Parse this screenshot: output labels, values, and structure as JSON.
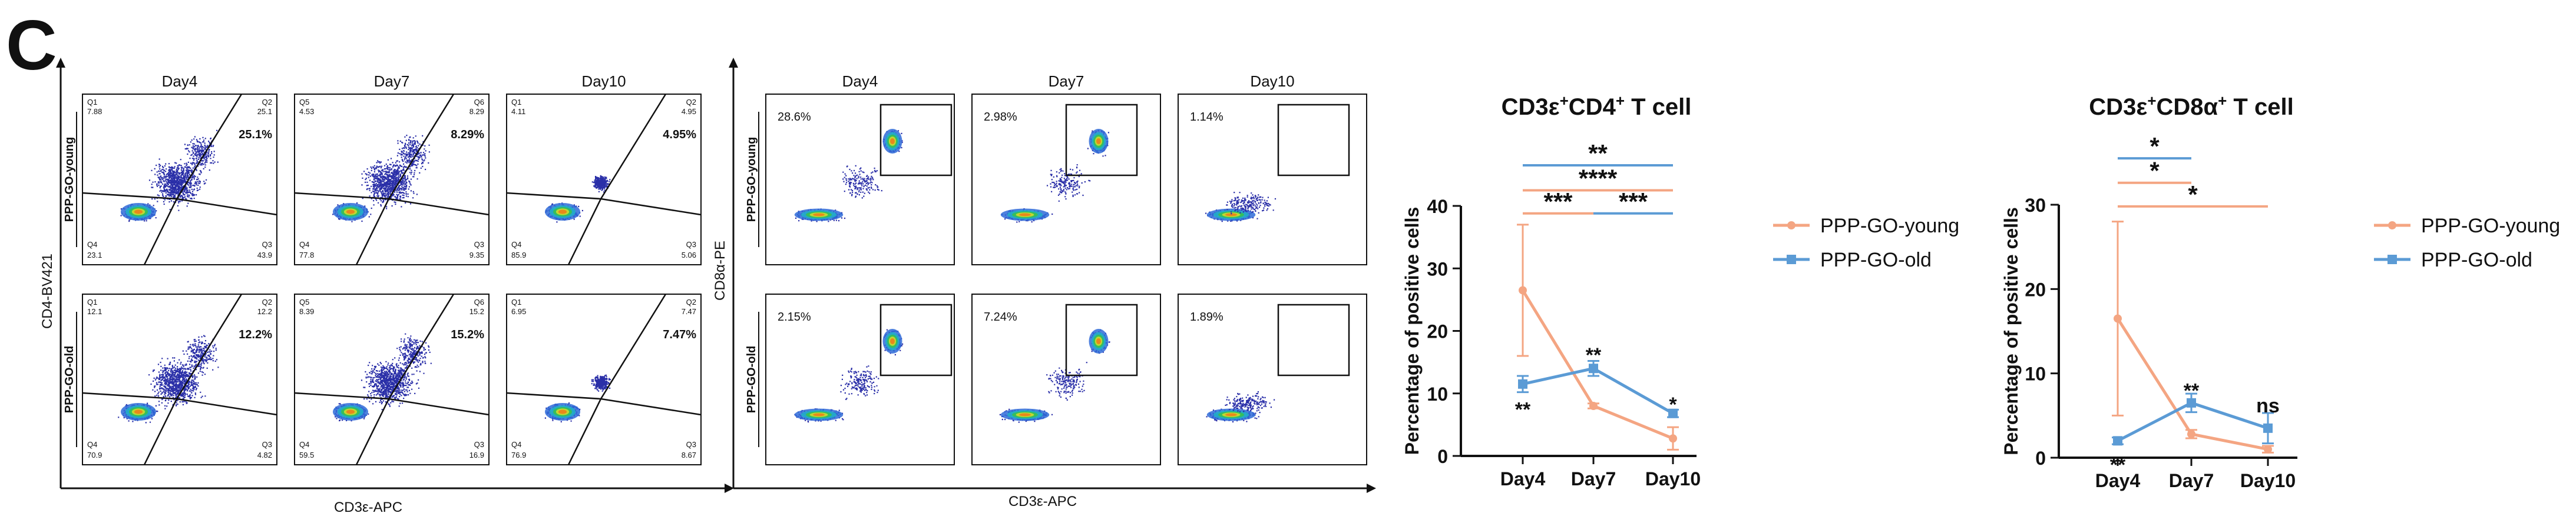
{
  "panel_letter": "C",
  "flow_cd4": {
    "days": [
      "Day4",
      "Day7",
      "Day10"
    ],
    "row_labels": [
      "PPP-GO-young",
      "PPP-GO-old"
    ],
    "y_axis_label": "CD4-BV421",
    "x_axis_label": "CD3ε-APC",
    "gates": [
      [
        {
          "q1_label": "Q1",
          "q1": "7.88",
          "q2_label": "Q2",
          "q2": "25.1",
          "q3_label": "Q3",
          "q3": "43.9",
          "q4_label": "Q4",
          "q4": "23.1",
          "highlight": "25.1%"
        },
        {
          "q1_label": "Q5",
          "q1": "4.53",
          "q2_label": "Q6",
          "q2": "8.29",
          "q3_label": "Q3",
          "q3": "9.35",
          "q4_label": "Q4",
          "q4": "77.8",
          "highlight": "8.29%"
        },
        {
          "q1_label": "Q1",
          "q1": "4.11",
          "q2_label": "Q2",
          "q2": "4.95",
          "q3_label": "Q3",
          "q3": "5.06",
          "q4_label": "Q4",
          "q4": "85.9",
          "highlight": "4.95%"
        }
      ],
      [
        {
          "q1_label": "Q1",
          "q1": "12.1",
          "q2_label": "Q2",
          "q2": "12.2",
          "q3_label": "Q3",
          "q3": "4.82",
          "q4_label": "Q4",
          "q4": "70.9",
          "highlight": "12.2%"
        },
        {
          "q1_label": "Q5",
          "q1": "8.39",
          "q2_label": "Q6",
          "q2": "15.2",
          "q3_label": "Q3",
          "q3": "16.9",
          "q4_label": "Q4",
          "q4": "59.5",
          "highlight": "15.2%"
        },
        {
          "q1_label": "Q1",
          "q1": "6.95",
          "q2_label": "Q2",
          "q2": "7.47",
          "q3_label": "Q3",
          "q3": "8.67",
          "q4_label": "Q4",
          "q4": "76.9",
          "highlight": "7.47%"
        }
      ]
    ]
  },
  "flow_cd8": {
    "days": [
      "Day4",
      "Day7",
      "Day10"
    ],
    "row_labels": [
      "PPP-GO-young",
      "PPP-GO-old"
    ],
    "y_axis_label": "CD8α-PE",
    "x_axis_label": "CD3ε-APC",
    "gates": [
      [
        "28.6%",
        "2.98%",
        "1.14%"
      ],
      [
        "2.15%",
        "7.24%",
        "1.89%"
      ]
    ]
  },
  "colors": {
    "young": "#F4A582",
    "old": "#5B9BD5",
    "density_low": "#2233aa",
    "density_high": "#e62020"
  },
  "chart_data": [
    {
      "type": "line",
      "title_parts": [
        "CD3ε",
        "+",
        "CD4",
        "+",
        " T cell"
      ],
      "ylabel": "Percentage of positive cells",
      "categories": [
        "Day4",
        "Day7",
        "Day10"
      ],
      "ylim": [
        0,
        40
      ],
      "yticks": [
        0,
        10,
        20,
        30,
        40
      ],
      "ytick_labels": [
        "0",
        "10",
        "20",
        "30",
        "40"
      ],
      "series": [
        {
          "name": "PPP-GO-young",
          "values": [
            26.5,
            8,
            2.8
          ],
          "errors": [
            10.5,
            0.4,
            1.8
          ]
        },
        {
          "name": "PPP-GO-old",
          "values": [
            11.5,
            14,
            6.8
          ],
          "errors": [
            1.3,
            1.2,
            0.6
          ]
        }
      ],
      "point_annotations": [
        {
          "text": "**",
          "x": 0,
          "y": 7.5
        },
        {
          "text": "**",
          "x": 1,
          "y": 16.2
        },
        {
          "text": "*",
          "x": 2,
          "y": 8.3
        }
      ],
      "significance": [
        {
          "from": 0,
          "to": 2,
          "y": 46.5,
          "text": "**",
          "series": "old"
        },
        {
          "from": 0,
          "to": 2,
          "y": 42.5,
          "text": "****",
          "series": "young"
        },
        {
          "from": 0,
          "to": 1,
          "y": 38.8,
          "text": "***",
          "series": "young"
        },
        {
          "from": 1,
          "to": 2,
          "y": 38.8,
          "text": "***",
          "series": "old"
        }
      ]
    },
    {
      "type": "line",
      "title_parts": [
        "CD3ε",
        "+",
        "CD8α",
        "+",
        " T cell"
      ],
      "ylabel": "Percentage of positive cells",
      "categories": [
        "Day4",
        "Day7",
        "Day10"
      ],
      "ylim": [
        0,
        30
      ],
      "yticks": [
        0,
        10,
        20,
        30
      ],
      "ytick_labels": [
        "0",
        "10",
        "20",
        "30"
      ],
      "series": [
        {
          "name": "PPP-GO-young",
          "values": [
            16.5,
            2.8,
            1.0
          ],
          "errors": [
            11.5,
            0.5,
            0.4
          ]
        },
        {
          "name": "PPP-GO-old",
          "values": [
            2.0,
            6.5,
            3.5
          ],
          "errors": [
            0.4,
            1.1,
            1.8
          ]
        }
      ],
      "point_annotations": [
        {
          "text": "**",
          "x": 0,
          "y": -0.8
        },
        {
          "text": "**",
          "x": 1,
          "y": 8.0
        },
        {
          "text": "ns",
          "x": 2,
          "y": 6.2
        }
      ],
      "significance": [
        {
          "from": 0,
          "to": 1,
          "y": 35.5,
          "text": "*",
          "series": "old"
        },
        {
          "from": 0,
          "to": 1,
          "y": 32.6,
          "text": "*",
          "series": "young"
        },
        {
          "from": 0,
          "to": 2,
          "y": 29.8,
          "text": "*",
          "series": "young"
        }
      ]
    }
  ]
}
